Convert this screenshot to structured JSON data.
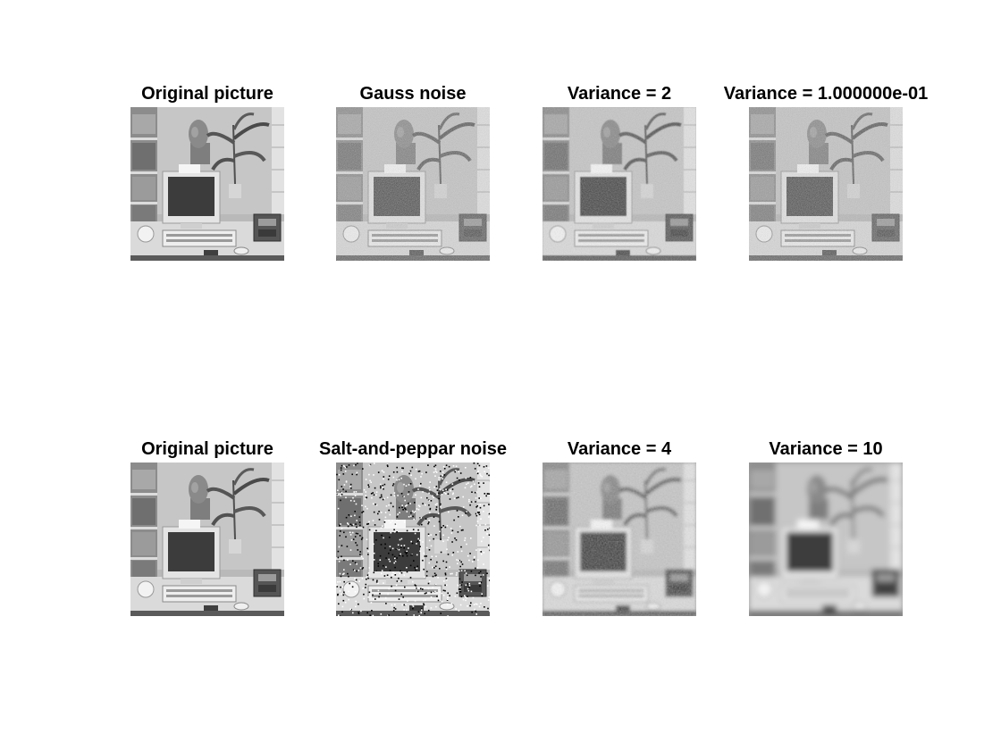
{
  "figure": {
    "panels": [
      {
        "title": "Original picture",
        "image": "office-scene-grayscale",
        "effect": "none"
      },
      {
        "title": "Gauss noise",
        "image": "office-scene-grayscale",
        "effect": "gaussian-noise"
      },
      {
        "title": "Variance = 2",
        "image": "office-scene-grayscale",
        "effect": "filtered-light"
      },
      {
        "title": "Variance = 1.000000e-01",
        "image": "office-scene-grayscale",
        "effect": "filtered-noisy"
      },
      {
        "title": "Original picture",
        "image": "office-scene-grayscale",
        "effect": "none"
      },
      {
        "title": "Salt-and-peppar noise",
        "image": "office-scene-grayscale",
        "effect": "salt-and-pepper"
      },
      {
        "title": "Variance = 4",
        "image": "office-scene-grayscale",
        "effect": "blur-medium"
      },
      {
        "title": "Variance = 10",
        "image": "office-scene-grayscale",
        "effect": "blur-strong"
      }
    ]
  }
}
